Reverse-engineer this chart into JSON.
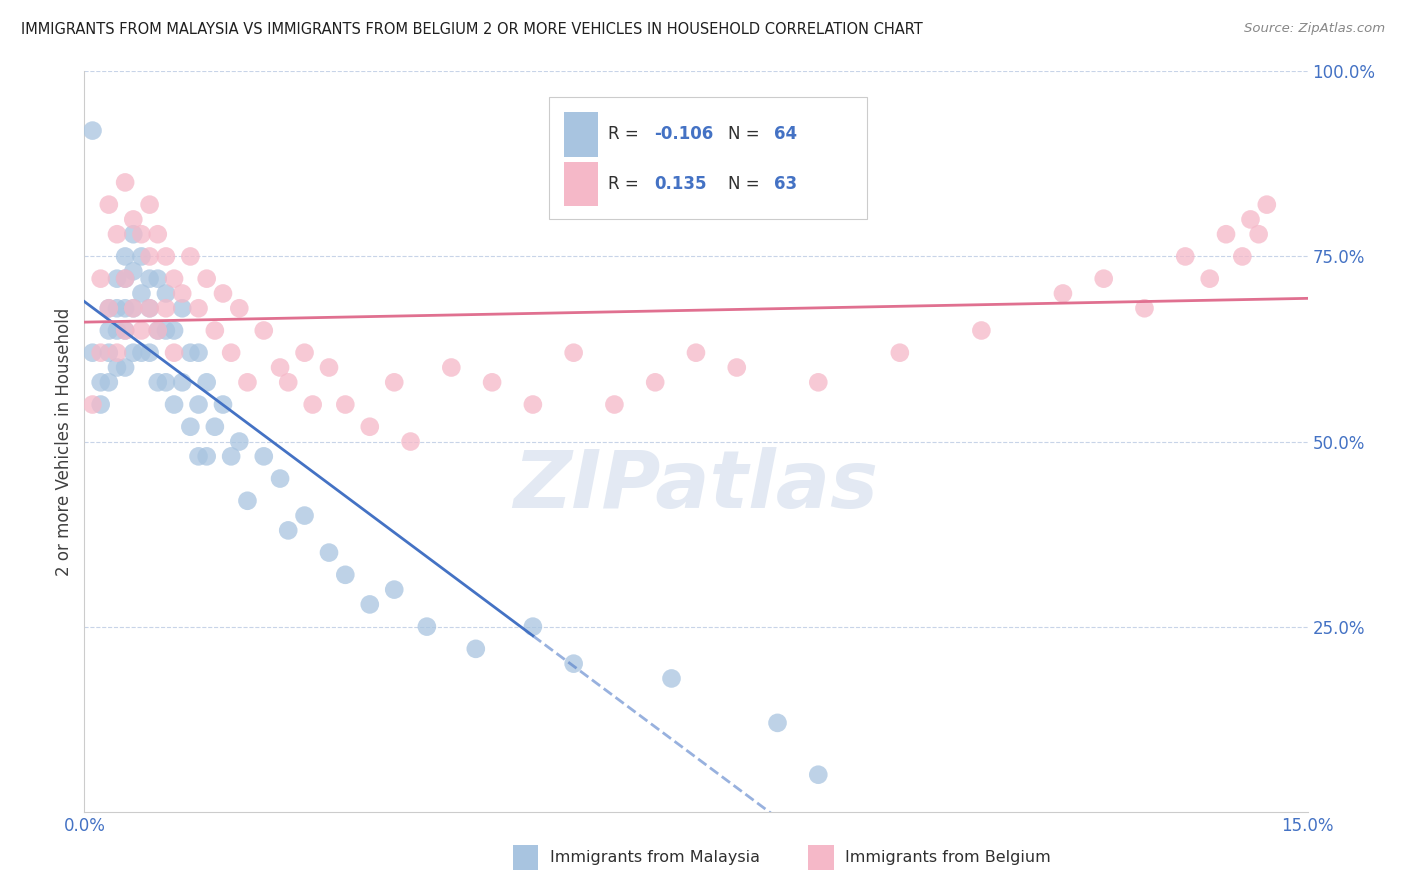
{
  "title": "IMMIGRANTS FROM MALAYSIA VS IMMIGRANTS FROM BELGIUM 2 OR MORE VEHICLES IN HOUSEHOLD CORRELATION CHART",
  "source": "Source: ZipAtlas.com",
  "ylabel": "2 or more Vehicles in Household",
  "xlim": [
    0.0,
    0.15
  ],
  "ylim": [
    0.0,
    1.0
  ],
  "malaysia_color": "#a8c4e0",
  "belgium_color": "#f5b8c8",
  "malaysia_line_color": "#4472c4",
  "belgium_line_color": "#e07090",
  "malaysia_R": -0.106,
  "malaysia_N": 64,
  "belgium_R": 0.135,
  "belgium_N": 63,
  "malaysia_label": "Immigrants from Malaysia",
  "belgium_label": "Immigrants from Belgium",
  "watermark": "ZIPatlas",
  "background_color": "#ffffff",
  "grid_color": "#c8d4e8",
  "title_color": "#202020",
  "axis_tick_color": "#4472c4",
  "legend_R_color": "#4472c4",
  "legend_N_color": "#4472c4",
  "malaysia_scatter_x": [
    0.001,
    0.001,
    0.002,
    0.002,
    0.003,
    0.003,
    0.003,
    0.003,
    0.004,
    0.004,
    0.004,
    0.004,
    0.005,
    0.005,
    0.005,
    0.005,
    0.005,
    0.006,
    0.006,
    0.006,
    0.006,
    0.007,
    0.007,
    0.007,
    0.008,
    0.008,
    0.008,
    0.009,
    0.009,
    0.009,
    0.01,
    0.01,
    0.01,
    0.011,
    0.011,
    0.012,
    0.012,
    0.013,
    0.013,
    0.014,
    0.014,
    0.014,
    0.015,
    0.015,
    0.016,
    0.017,
    0.018,
    0.019,
    0.02,
    0.022,
    0.024,
    0.025,
    0.027,
    0.03,
    0.032,
    0.035,
    0.038,
    0.042,
    0.048,
    0.055,
    0.06,
    0.072,
    0.085,
    0.09
  ],
  "malaysia_scatter_y": [
    0.92,
    0.62,
    0.58,
    0.55,
    0.68,
    0.65,
    0.62,
    0.58,
    0.72,
    0.68,
    0.65,
    0.6,
    0.75,
    0.72,
    0.68,
    0.65,
    0.6,
    0.78,
    0.73,
    0.68,
    0.62,
    0.75,
    0.7,
    0.62,
    0.72,
    0.68,
    0.62,
    0.72,
    0.65,
    0.58,
    0.7,
    0.65,
    0.58,
    0.65,
    0.55,
    0.68,
    0.58,
    0.62,
    0.52,
    0.62,
    0.55,
    0.48,
    0.58,
    0.48,
    0.52,
    0.55,
    0.48,
    0.5,
    0.42,
    0.48,
    0.45,
    0.38,
    0.4,
    0.35,
    0.32,
    0.28,
    0.3,
    0.25,
    0.22,
    0.25,
    0.2,
    0.18,
    0.12,
    0.05
  ],
  "belgium_scatter_x": [
    0.001,
    0.002,
    0.002,
    0.003,
    0.003,
    0.004,
    0.004,
    0.005,
    0.005,
    0.005,
    0.006,
    0.006,
    0.007,
    0.007,
    0.008,
    0.008,
    0.008,
    0.009,
    0.009,
    0.01,
    0.01,
    0.011,
    0.011,
    0.012,
    0.013,
    0.014,
    0.015,
    0.016,
    0.017,
    0.018,
    0.019,
    0.02,
    0.022,
    0.024,
    0.025,
    0.027,
    0.028,
    0.03,
    0.032,
    0.035,
    0.038,
    0.04,
    0.045,
    0.05,
    0.055,
    0.06,
    0.065,
    0.07,
    0.075,
    0.08,
    0.09,
    0.1,
    0.11,
    0.12,
    0.125,
    0.13,
    0.135,
    0.138,
    0.14,
    0.142,
    0.143,
    0.144,
    0.145
  ],
  "belgium_scatter_y": [
    0.55,
    0.62,
    0.72,
    0.68,
    0.82,
    0.78,
    0.62,
    0.85,
    0.72,
    0.65,
    0.8,
    0.68,
    0.78,
    0.65,
    0.82,
    0.75,
    0.68,
    0.78,
    0.65,
    0.75,
    0.68,
    0.72,
    0.62,
    0.7,
    0.75,
    0.68,
    0.72,
    0.65,
    0.7,
    0.62,
    0.68,
    0.58,
    0.65,
    0.6,
    0.58,
    0.62,
    0.55,
    0.6,
    0.55,
    0.52,
    0.58,
    0.5,
    0.6,
    0.58,
    0.55,
    0.62,
    0.55,
    0.58,
    0.62,
    0.6,
    0.58,
    0.62,
    0.65,
    0.7,
    0.72,
    0.68,
    0.75,
    0.72,
    0.78,
    0.75,
    0.8,
    0.78,
    0.82
  ]
}
